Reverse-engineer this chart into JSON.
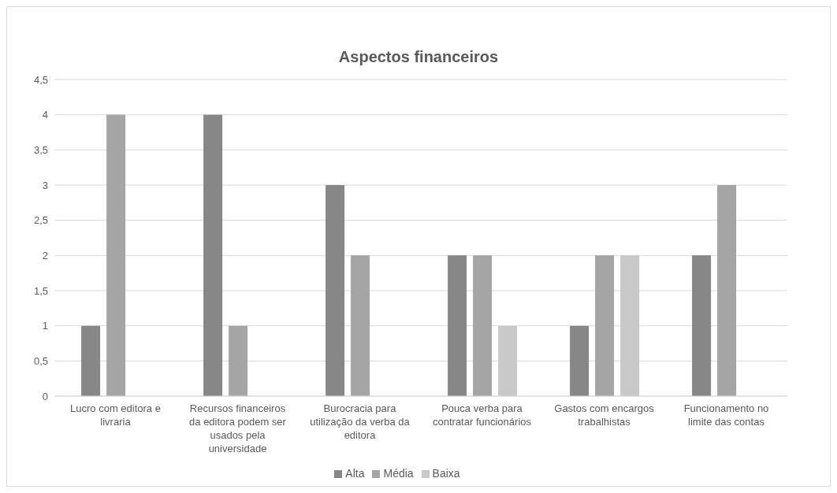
{
  "chart_data": {
    "type": "bar",
    "title": "Aspectos financeiros",
    "categories": [
      "Lucro com editora e livraria",
      "Recursos financeiros da editora podem ser usados pela universidade",
      "Burocracia para utilização da verba da editora",
      "Pouca verba para contratar funcionários",
      "Gastos com encargos trabalhistas",
      "Funcionamento no limite das contas"
    ],
    "series": [
      {
        "name": "Alta",
        "color": "#878787",
        "values": [
          1,
          4,
          3,
          2,
          1,
          2
        ]
      },
      {
        "name": "Média",
        "color": "#a5a5a5",
        "values": [
          4,
          1,
          2,
          2,
          2,
          3
        ]
      },
      {
        "name": "Baixa",
        "color": "#c9c9c9",
        "values": [
          null,
          null,
          null,
          1,
          2,
          null
        ]
      }
    ],
    "ylim": [
      0,
      4.5
    ],
    "yticks": [
      0,
      {
        "value": 0.5,
        "label": "0,5"
      },
      1,
      {
        "value": 1.5,
        "label": "1,5"
      },
      2,
      {
        "value": 2.5,
        "label": "2,5"
      },
      3,
      {
        "value": 3.5,
        "label": "3,5"
      },
      4,
      {
        "value": 4.5,
        "label": "4,5"
      }
    ],
    "grid": "y",
    "legend": "bottom"
  }
}
